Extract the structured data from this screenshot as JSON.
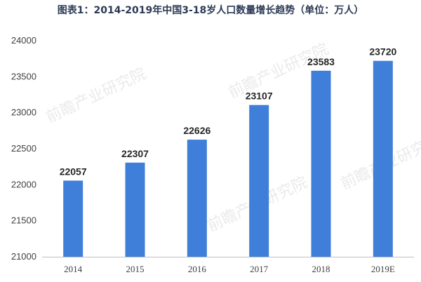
{
  "chart_data": {
    "type": "bar",
    "title": "图表1：2014-2019年中国3-18岁人口数量增长趋势（单位：万人）",
    "categories": [
      "2014",
      "2015",
      "2016",
      "2017",
      "2018",
      "2019E"
    ],
    "values": [
      22057,
      22307,
      22626,
      23107,
      23583,
      23720
    ],
    "data_labels": [
      "22057",
      "22307",
      "22626",
      "23107",
      "23583",
      "23720"
    ],
    "ylim": [
      21000,
      24000
    ],
    "yticks": [
      21000,
      21500,
      22000,
      22500,
      23000,
      23500,
      24000
    ],
    "xlabel": "",
    "ylabel": "",
    "grid": false,
    "legend": "none",
    "colors": {
      "bar": "#3f7fd9",
      "axis": "#bfbfbf",
      "title": "#2b3a55"
    }
  }
}
